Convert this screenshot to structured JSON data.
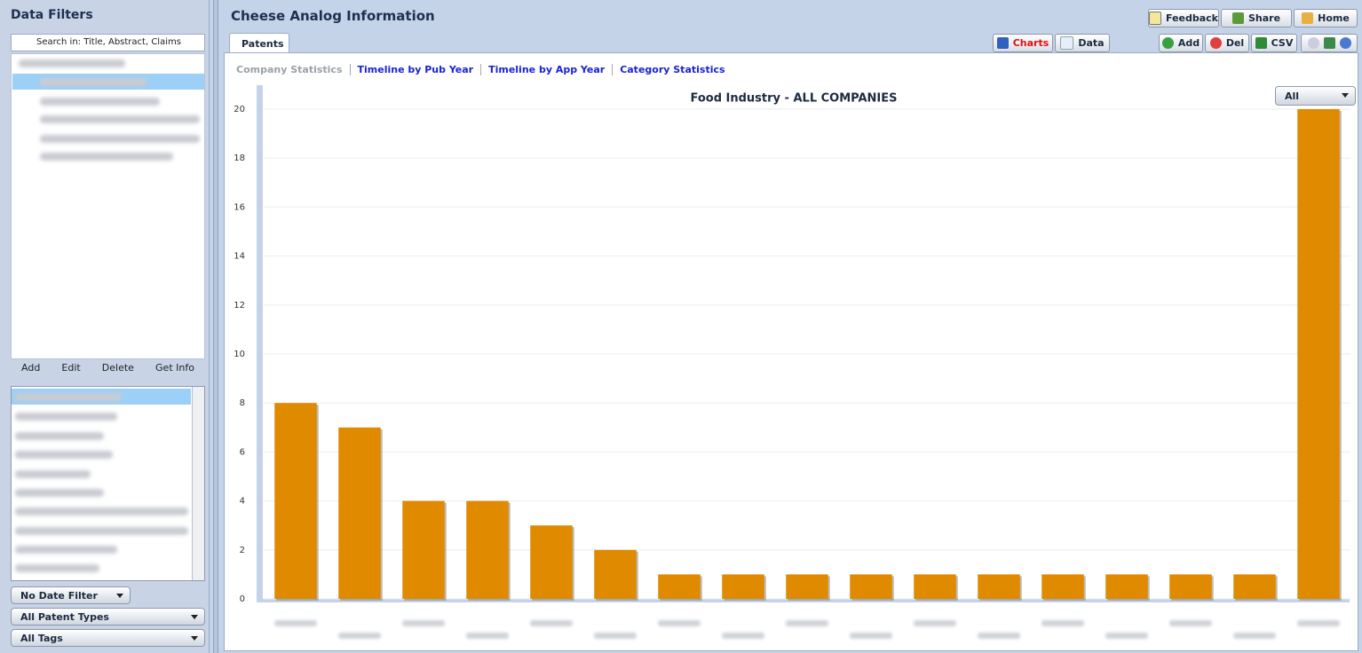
{
  "ui": {
    "filters_title": "Data Filters",
    "search_placeholder": "Search in: Title, Abstract, Claims",
    "tree_actions": [
      "Add",
      "Edit",
      "Delete",
      "Get Info"
    ],
    "dropdowns": [
      "No Date Filter",
      "All Patent Types",
      "All Tags"
    ],
    "page_title": "Cheese Analog Information",
    "top_buttons": [
      "Feedback",
      "Share",
      "Home"
    ],
    "tab": "Patents",
    "view_buttons": [
      "Charts",
      "Data"
    ],
    "action_buttons": [
      "Add",
      "Del",
      "CSV"
    ],
    "chart_links": [
      "Company Statistics",
      "Timeline by Pub Year",
      "Timeline by App Year",
      "Category Statistics"
    ],
    "chart_filter": "All"
  },
  "chart_data": {
    "type": "bar",
    "title": "Food Industry - ALL COMPANIES",
    "categories": [
      null,
      null,
      null,
      null,
      null,
      null,
      null,
      null,
      null,
      null,
      null,
      null,
      null,
      null,
      null,
      null,
      null
    ],
    "values": [
      8,
      7,
      4,
      4,
      3,
      2,
      1,
      1,
      1,
      1,
      1,
      1,
      1,
      1,
      1,
      1,
      20
    ],
    "color": "#e08a00",
    "ylim": [
      0,
      20
    ],
    "yticks": [
      0,
      2,
      4,
      6,
      8,
      10,
      12,
      14,
      16,
      18,
      20
    ],
    "grid": true
  }
}
